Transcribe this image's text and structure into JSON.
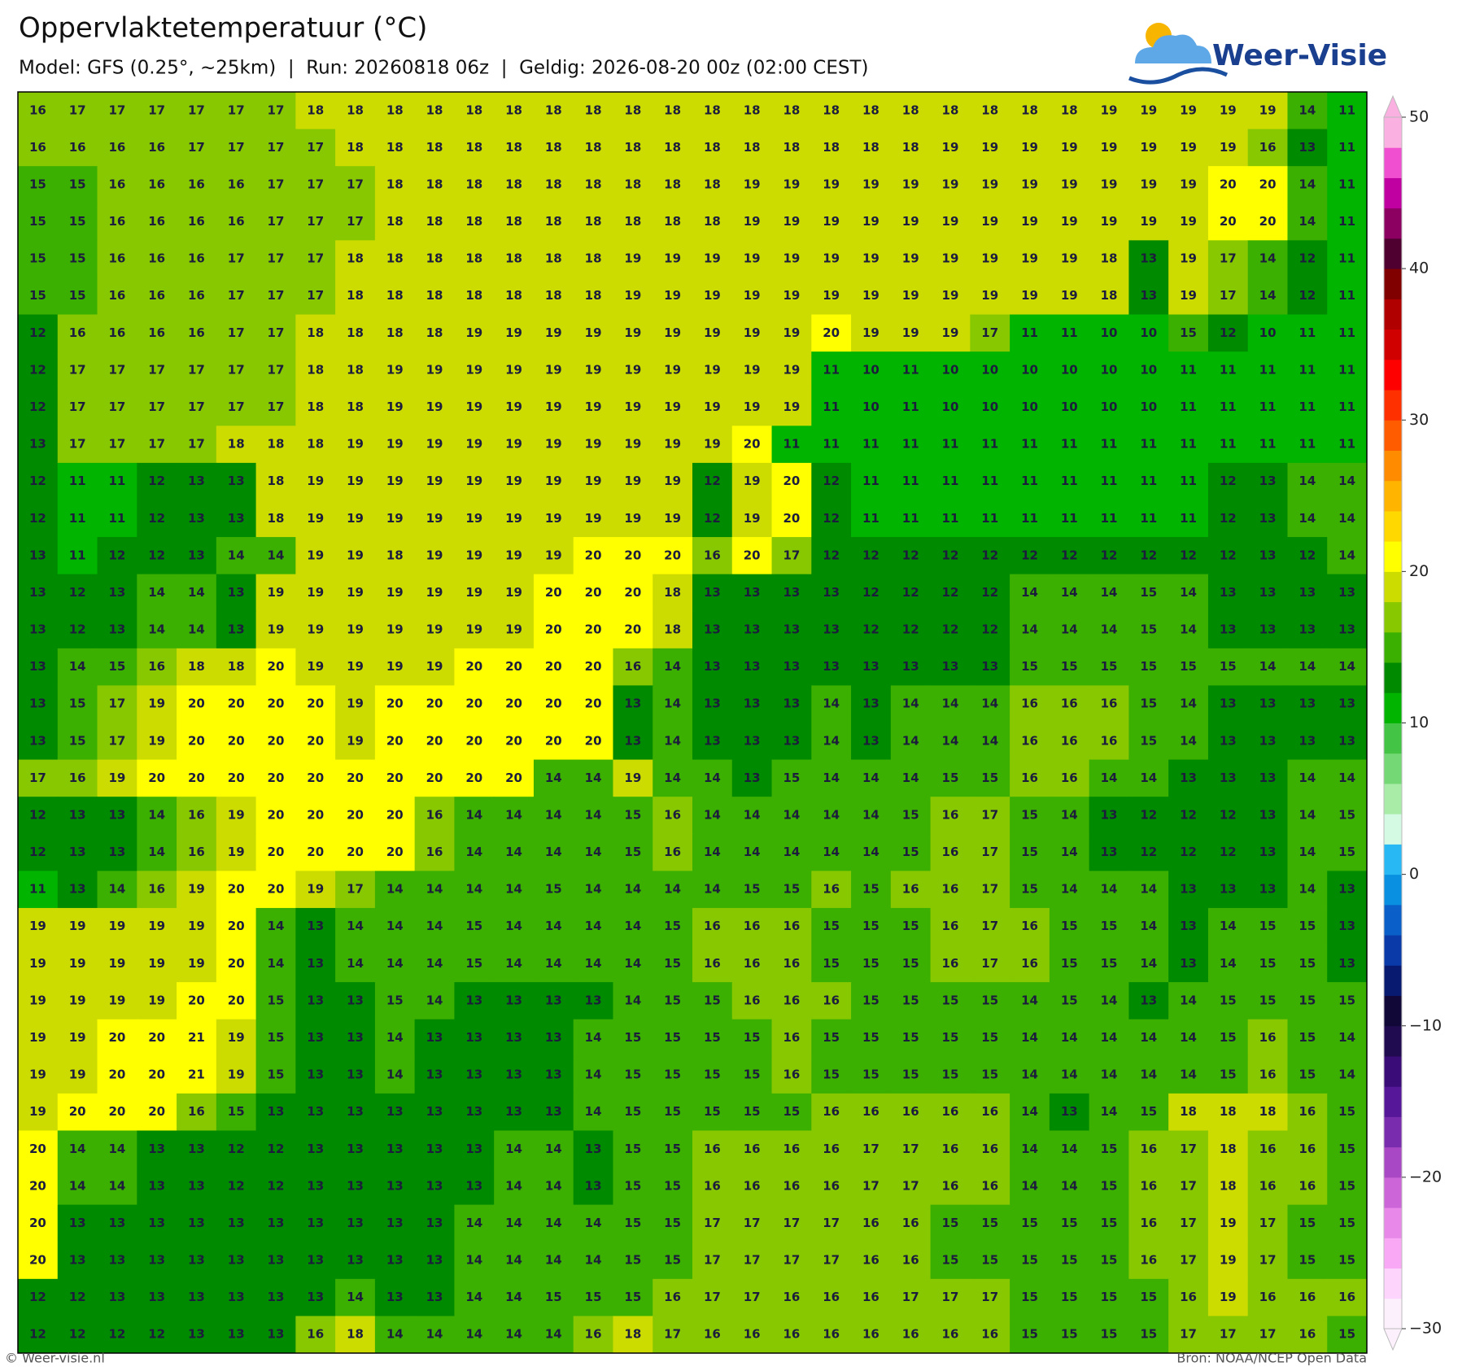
{
  "header": {
    "title": "Oppervlaktetemperatuur (°C)",
    "subtitle": "Model: GFS (0.25°, ~25km)  |  Run: 20260818 06z  |  Geldig: 2026-08-20 00z (02:00 CEST)",
    "logo": "Weer-Visie"
  },
  "map": {
    "grid": [
      [
        16,
        17,
        17,
        17,
        17,
        17,
        17,
        18,
        18,
        18,
        18,
        18,
        18,
        18,
        18,
        18,
        18,
        18,
        18,
        18,
        18,
        18,
        18,
        18,
        18,
        18,
        18,
        19,
        19,
        19,
        19,
        19,
        14,
        11
      ],
      [
        16,
        16,
        16,
        16,
        17,
        17,
        17,
        17,
        18,
        18,
        18,
        18,
        18,
        18,
        18,
        18,
        18,
        18,
        18,
        18,
        18,
        18,
        18,
        19,
        19,
        19,
        19,
        19,
        19,
        19,
        19,
        16,
        13,
        11
      ],
      [
        15,
        15,
        16,
        16,
        16,
        16,
        17,
        17,
        17,
        18,
        18,
        18,
        18,
        18,
        18,
        18,
        18,
        18,
        19,
        19,
        19,
        19,
        19,
        19,
        19,
        19,
        19,
        19,
        19,
        19,
        20,
        20,
        14,
        11
      ],
      [
        15,
        15,
        16,
        16,
        16,
        16,
        17,
        17,
        17,
        18,
        18,
        18,
        18,
        18,
        18,
        18,
        18,
        18,
        19,
        19,
        19,
        19,
        19,
        19,
        19,
        19,
        19,
        19,
        19,
        19,
        20,
        20,
        14,
        11
      ],
      [
        15,
        15,
        16,
        16,
        16,
        17,
        17,
        17,
        18,
        18,
        18,
        18,
        18,
        18,
        18,
        19,
        19,
        19,
        19,
        19,
        19,
        19,
        19,
        19,
        19,
        19,
        19,
        18,
        13,
        19,
        17,
        14,
        12,
        11
      ],
      [
        15,
        15,
        16,
        16,
        16,
        17,
        17,
        17,
        18,
        18,
        18,
        18,
        18,
        18,
        18,
        19,
        19,
        19,
        19,
        19,
        19,
        19,
        19,
        19,
        19,
        19,
        19,
        18,
        13,
        19,
        17,
        14,
        12,
        11
      ],
      [
        12,
        16,
        16,
        16,
        16,
        17,
        17,
        18,
        18,
        18,
        18,
        19,
        19,
        19,
        19,
        19,
        19,
        19,
        19,
        19,
        20,
        19,
        19,
        19,
        17,
        11,
        11,
        10,
        10,
        15,
        12,
        10,
        11,
        11
      ],
      [
        12,
        17,
        17,
        17,
        17,
        17,
        17,
        18,
        18,
        19,
        19,
        19,
        19,
        19,
        19,
        19,
        19,
        19,
        19,
        19,
        11,
        10,
        11,
        10,
        10,
        10,
        10,
        10,
        10,
        11,
        11,
        11,
        11,
        11
      ],
      [
        12,
        17,
        17,
        17,
        17,
        17,
        17,
        18,
        18,
        19,
        19,
        19,
        19,
        19,
        19,
        19,
        19,
        19,
        19,
        19,
        11,
        10,
        11,
        10,
        10,
        10,
        10,
        10,
        10,
        11,
        11,
        11,
        11,
        11
      ],
      [
        13,
        17,
        17,
        17,
        17,
        18,
        18,
        18,
        19,
        19,
        19,
        19,
        19,
        19,
        19,
        19,
        19,
        19,
        20,
        11,
        11,
        11,
        11,
        11,
        11,
        11,
        11,
        11,
        11,
        11,
        11,
        11,
        11,
        11
      ],
      [
        12,
        11,
        11,
        12,
        13,
        13,
        18,
        19,
        19,
        19,
        19,
        19,
        19,
        19,
        19,
        19,
        19,
        12,
        19,
        20,
        12,
        11,
        11,
        11,
        11,
        11,
        11,
        11,
        11,
        11,
        12,
        13,
        14,
        14
      ],
      [
        12,
        11,
        11,
        12,
        13,
        13,
        18,
        19,
        19,
        19,
        19,
        19,
        19,
        19,
        19,
        19,
        19,
        12,
        19,
        20,
        12,
        11,
        11,
        11,
        11,
        11,
        11,
        11,
        11,
        11,
        12,
        13,
        14,
        14
      ],
      [
        13,
        11,
        12,
        12,
        13,
        14,
        14,
        19,
        19,
        18,
        19,
        19,
        19,
        19,
        20,
        20,
        20,
        16,
        20,
        17,
        12,
        12,
        12,
        12,
        12,
        12,
        12,
        12,
        12,
        12,
        12,
        13,
        12,
        14
      ],
      [
        13,
        12,
        13,
        14,
        14,
        13,
        19,
        19,
        19,
        19,
        19,
        19,
        19,
        20,
        20,
        20,
        18,
        13,
        13,
        13,
        13,
        12,
        12,
        12,
        12,
        14,
        14,
        14,
        15,
        14,
        13,
        13,
        13,
        13
      ],
      [
        13,
        12,
        13,
        14,
        14,
        13,
        19,
        19,
        19,
        19,
        19,
        19,
        19,
        20,
        20,
        20,
        18,
        13,
        13,
        13,
        13,
        12,
        12,
        12,
        12,
        14,
        14,
        14,
        15,
        14,
        13,
        13,
        13,
        13
      ],
      [
        13,
        14,
        15,
        16,
        18,
        18,
        20,
        19,
        19,
        19,
        19,
        20,
        20,
        20,
        20,
        16,
        14,
        13,
        13,
        13,
        13,
        13,
        13,
        13,
        13,
        15,
        15,
        15,
        15,
        15,
        15,
        14,
        14,
        14
      ],
      [
        13,
        15,
        17,
        19,
        20,
        20,
        20,
        20,
        19,
        20,
        20,
        20,
        20,
        20,
        20,
        13,
        14,
        13,
        13,
        13,
        14,
        13,
        14,
        14,
        14,
        16,
        16,
        16,
        15,
        14,
        13,
        13,
        13,
        13
      ],
      [
        13,
        15,
        17,
        19,
        20,
        20,
        20,
        20,
        19,
        20,
        20,
        20,
        20,
        20,
        20,
        13,
        14,
        13,
        13,
        13,
        14,
        13,
        14,
        14,
        14,
        16,
        16,
        16,
        15,
        14,
        13,
        13,
        13,
        13
      ],
      [
        17,
        16,
        19,
        20,
        20,
        20,
        20,
        20,
        20,
        20,
        20,
        20,
        20,
        14,
        14,
        19,
        14,
        14,
        13,
        15,
        14,
        14,
        14,
        15,
        15,
        16,
        16,
        14,
        14,
        13,
        13,
        13,
        14,
        14
      ],
      [
        12,
        13,
        13,
        14,
        16,
        19,
        20,
        20,
        20,
        20,
        16,
        14,
        14,
        14,
        14,
        15,
        16,
        14,
        14,
        14,
        14,
        14,
        15,
        16,
        17,
        15,
        14,
        13,
        12,
        12,
        12,
        13,
        14,
        15
      ],
      [
        12,
        13,
        13,
        14,
        16,
        19,
        20,
        20,
        20,
        20,
        16,
        14,
        14,
        14,
        14,
        15,
        16,
        14,
        14,
        14,
        14,
        14,
        15,
        16,
        17,
        15,
        14,
        13,
        12,
        12,
        12,
        13,
        14,
        15
      ],
      [
        11,
        13,
        14,
        16,
        19,
        20,
        20,
        19,
        17,
        14,
        14,
        14,
        14,
        15,
        14,
        14,
        14,
        14,
        15,
        15,
        16,
        15,
        16,
        16,
        17,
        15,
        14,
        14,
        14,
        13,
        13,
        13,
        14,
        13
      ],
      [
        19,
        19,
        19,
        19,
        19,
        20,
        14,
        13,
        14,
        14,
        14,
        15,
        14,
        14,
        14,
        14,
        15,
        16,
        16,
        16,
        15,
        15,
        15,
        16,
        17,
        16,
        15,
        15,
        14,
        13,
        14,
        15,
        15,
        13
      ],
      [
        19,
        19,
        19,
        19,
        19,
        20,
        14,
        13,
        14,
        14,
        14,
        15,
        14,
        14,
        14,
        14,
        15,
        16,
        16,
        16,
        15,
        15,
        15,
        16,
        17,
        16,
        15,
        15,
        14,
        13,
        14,
        15,
        15,
        13
      ],
      [
        19,
        19,
        19,
        19,
        20,
        20,
        15,
        13,
        13,
        15,
        14,
        13,
        13,
        13,
        13,
        14,
        15,
        15,
        16,
        16,
        16,
        15,
        15,
        15,
        15,
        14,
        15,
        14,
        13,
        14,
        15,
        15,
        15,
        15
      ],
      [
        19,
        19,
        20,
        20,
        21,
        19,
        15,
        13,
        13,
        14,
        13,
        13,
        13,
        13,
        14,
        15,
        15,
        15,
        15,
        16,
        15,
        15,
        15,
        15,
        15,
        14,
        14,
        14,
        14,
        14,
        15,
        16,
        15,
        14
      ],
      [
        19,
        19,
        20,
        20,
        21,
        19,
        15,
        13,
        13,
        14,
        13,
        13,
        13,
        13,
        14,
        15,
        15,
        15,
        15,
        16,
        15,
        15,
        15,
        15,
        15,
        14,
        14,
        14,
        14,
        14,
        15,
        16,
        15,
        14
      ],
      [
        19,
        20,
        20,
        20,
        16,
        15,
        13,
        13,
        13,
        13,
        13,
        13,
        13,
        13,
        14,
        15,
        15,
        15,
        15,
        15,
        16,
        16,
        16,
        16,
        16,
        14,
        13,
        14,
        15,
        18,
        18,
        18,
        16,
        15
      ],
      [
        20,
        14,
        14,
        13,
        13,
        12,
        12,
        13,
        13,
        13,
        13,
        13,
        14,
        14,
        13,
        15,
        15,
        16,
        16,
        16,
        16,
        17,
        17,
        16,
        16,
        14,
        14,
        15,
        16,
        17,
        18,
        16,
        16,
        15
      ],
      [
        20,
        14,
        14,
        13,
        13,
        12,
        12,
        13,
        13,
        13,
        13,
        13,
        14,
        14,
        13,
        15,
        15,
        16,
        16,
        16,
        16,
        17,
        17,
        16,
        16,
        14,
        14,
        15,
        16,
        17,
        18,
        16,
        16,
        15
      ],
      [
        20,
        13,
        13,
        13,
        13,
        13,
        13,
        13,
        13,
        13,
        13,
        14,
        14,
        14,
        14,
        15,
        15,
        17,
        17,
        17,
        17,
        16,
        16,
        15,
        15,
        15,
        15,
        15,
        16,
        17,
        19,
        17,
        15,
        15
      ],
      [
        20,
        13,
        13,
        13,
        13,
        13,
        13,
        13,
        13,
        13,
        13,
        14,
        14,
        14,
        14,
        15,
        15,
        17,
        17,
        17,
        17,
        16,
        16,
        15,
        15,
        15,
        15,
        15,
        16,
        17,
        19,
        17,
        15,
        15
      ],
      [
        12,
        12,
        13,
        13,
        13,
        13,
        13,
        13,
        14,
        13,
        13,
        14,
        14,
        15,
        15,
        15,
        16,
        17,
        17,
        16,
        16,
        16,
        17,
        17,
        17,
        15,
        15,
        15,
        15,
        16,
        19,
        16,
        16,
        16
      ],
      [
        12,
        12,
        12,
        12,
        13,
        13,
        13,
        16,
        18,
        14,
        14,
        14,
        14,
        14,
        16,
        18,
        17,
        16,
        16,
        16,
        16,
        16,
        16,
        16,
        16,
        15,
        15,
        15,
        15,
        17,
        17,
        17,
        16,
        15
      ]
    ]
  },
  "colorbar": {
    "lim": [
      -30,
      50
    ],
    "ticks": [
      50,
      40,
      30,
      20,
      10,
      0,
      {
        "value": -10,
        "label": "−10"
      },
      {
        "value": -20,
        "label": "−20"
      },
      {
        "value": -30,
        "label": "−30"
      }
    ],
    "colors": [
      "#fdf0fd",
      "#fcd4fc",
      "#f8a8f4",
      "#e888e8",
      "#cc66d8",
      "#a848c4",
      "#7a2cae",
      "#561898",
      "#3a0c78",
      "#200a50",
      "#120838",
      "#081a70",
      "#0a3aa8",
      "#0a60c8",
      "#0a90e0",
      "#28b8f4",
      "#d4fae4",
      "#a8eca8",
      "#74d874",
      "#44c444",
      "#00b400",
      "#008a00",
      "#3cb000",
      "#88c800",
      "#ccdc00",
      "#ffff00",
      "#ffd800",
      "#ffb400",
      "#ff8c00",
      "#ff5c00",
      "#ff3000",
      "#ff0000",
      "#d00000",
      "#b00000",
      "#800000",
      "#500030",
      "#8b0060",
      "#c000a0",
      "#f050d0",
      "#fab0e0"
    ]
  },
  "footer": {
    "credit": "© Weer-visie.nl",
    "source": "Bron: NOAA/NCEP Open Data"
  }
}
